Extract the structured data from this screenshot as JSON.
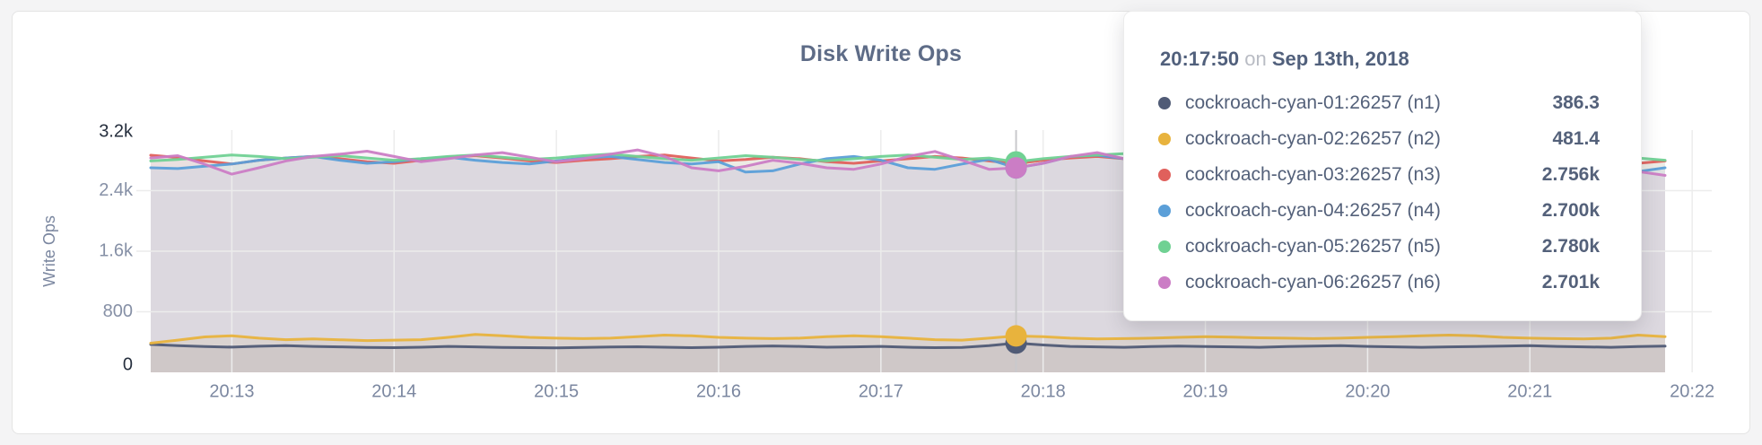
{
  "page": {
    "background": "#f4f4f5",
    "card_background": "#ffffff"
  },
  "chart_data": {
    "type": "area",
    "title": "Disk Write Ops",
    "ylabel": "Write Ops",
    "grid": true,
    "legend_position": "tooltip-only",
    "ylim": [
      0,
      3200
    ],
    "y_ticks": [
      {
        "label": "0",
        "value": 0,
        "emphasis": true
      },
      {
        "label": "800",
        "value": 800,
        "emphasis": false
      },
      {
        "label": "1.6k",
        "value": 1600,
        "emphasis": false
      },
      {
        "label": "2.4k",
        "value": 2400,
        "emphasis": false
      },
      {
        "label": "3.2k",
        "value": 3200,
        "emphasis": true
      }
    ],
    "x_ticks": [
      "20:13",
      "20:14",
      "20:15",
      "20:16",
      "20:17",
      "20:18",
      "20:19",
      "20:20",
      "20:21",
      "20:22"
    ],
    "x_window": {
      "start": "20:12:30",
      "end": "20:21:50",
      "step_seconds": 10,
      "first_tick_offset_s": 30,
      "tick_interval_s": 60
    },
    "hover": {
      "index": 32,
      "time": "20:17:50"
    },
    "series": [
      {
        "name": "cockroach-cyan-01:26257 (n1)",
        "color": "#505b76",
        "values": [
          368,
          352,
          340,
          333,
          345,
          352,
          342,
          336,
          330,
          326,
          332,
          342,
          336,
          330,
          326,
          322,
          328,
          334,
          338,
          332,
          326,
          332,
          342,
          348,
          342,
          332,
          336,
          342,
          332,
          326,
          330,
          352,
          386,
          362,
          342,
          336,
          331,
          341,
          346,
          341,
          336,
          331,
          341,
          347,
          352,
          342,
          336,
          331,
          336,
          341,
          346,
          352,
          342,
          336,
          331,
          341,
          346
        ]
      },
      {
        "name": "cockroach-cyan-02:26257 (n2)",
        "color": "#e8b33d",
        "values": [
          385,
          425,
          468,
          482,
          452,
          432,
          442,
          430,
          420,
          426,
          432,
          462,
          500,
          482,
          462,
          452,
          446,
          452,
          472,
          492,
          482,
          462,
          452,
          446,
          452,
          472,
          482,
          472,
          452,
          432,
          426,
          452,
          481,
          470,
          452,
          441,
          446,
          452,
          462,
          472,
          466,
          456,
          451,
          446,
          452,
          462,
          472,
          482,
          492,
          482,
          462,
          452,
          446,
          441,
          452,
          492,
          472
        ]
      },
      {
        "name": "cockroach-cyan-03:26257 (n3)",
        "color": "#e0605c",
        "values": [
          2868,
          2838,
          2792,
          2752,
          2802,
          2832,
          2852,
          2822,
          2782,
          2762,
          2802,
          2842,
          2862,
          2832,
          2792,
          2772,
          2802,
          2822,
          2852,
          2872,
          2832,
          2792,
          2812,
          2842,
          2822,
          2782,
          2762,
          2792,
          2822,
          2852,
          2832,
          2792,
          2756,
          2802,
          2832,
          2852,
          2822,
          2782,
          2802,
          2832,
          2862,
          2842,
          2802,
          2772,
          2792,
          2822,
          2852,
          2872,
          2832,
          2792,
          2772,
          2802,
          2896,
          2822,
          2782,
          2762,
          2792
        ]
      },
      {
        "name": "cockroach-cyan-04:26257 (n4)",
        "color": "#5b9fd8",
        "values": [
          2702,
          2692,
          2722,
          2752,
          2802,
          2832,
          2852,
          2802,
          2762,
          2782,
          2822,
          2842,
          2802,
          2772,
          2752,
          2792,
          2832,
          2852,
          2812,
          2772,
          2752,
          2782,
          2645,
          2662,
          2752,
          2822,
          2852,
          2802,
          2702,
          2682,
          2752,
          2812,
          2700,
          2762,
          2852,
          2868,
          2822,
          2762,
          2702,
          2732,
          2792,
          2842,
          2802,
          2752,
          2702,
          2742,
          2802,
          2832,
          2782,
          2702,
          2662,
          2702,
          2762,
          2802,
          2742,
          2652,
          2702
        ]
      },
      {
        "name": "cockroach-cyan-05:26257 (n5)",
        "color": "#70d193",
        "values": [
          2792,
          2812,
          2842,
          2872,
          2852,
          2822,
          2842,
          2862,
          2832,
          2802,
          2822,
          2852,
          2872,
          2842,
          2812,
          2832,
          2862,
          2882,
          2852,
          2822,
          2802,
          2832,
          2862,
          2842,
          2812,
          2792,
          2822,
          2852,
          2872,
          2842,
          2812,
          2832,
          2780,
          2822,
          2852,
          2872,
          2888,
          2852,
          2822,
          2842,
          2872,
          2852,
          2822,
          2802,
          2832,
          2862,
          2882,
          2852,
          2822,
          2842,
          2862,
          2832,
          2802,
          2822,
          2852,
          2832,
          2802
        ]
      },
      {
        "name": "cockroach-cyan-06:26257 (n6)",
        "color": "#cb7dc5",
        "values": [
          2832,
          2862,
          2748,
          2618,
          2702,
          2792,
          2852,
          2882,
          2922,
          2852,
          2782,
          2822,
          2872,
          2902,
          2842,
          2782,
          2822,
          2882,
          2938,
          2852,
          2702,
          2662,
          2722,
          2802,
          2762,
          2702,
          2682,
          2752,
          2852,
          2918,
          2802,
          2682,
          2701,
          2762,
          2852,
          2902,
          2822,
          2702,
          2662,
          2722,
          2802,
          2762,
          2702,
          2752,
          2822,
          2882,
          2948,
          2852,
          2752,
          2702,
          2762,
          2702,
          2652,
          2602,
          2702,
          2652,
          2602
        ]
      }
    ]
  },
  "tooltip": {
    "time": "20:17:50",
    "connector": "on",
    "date": "Sep 13th, 2018",
    "rows": [
      {
        "name": "cockroach-cyan-01:26257 (n1)",
        "value": "386.3",
        "color": "#505b76"
      },
      {
        "name": "cockroach-cyan-02:26257 (n2)",
        "value": "481.4",
        "color": "#e8b33d"
      },
      {
        "name": "cockroach-cyan-03:26257 (n3)",
        "value": "2.756k",
        "color": "#e0605c"
      },
      {
        "name": "cockroach-cyan-04:26257 (n4)",
        "value": "2.700k",
        "color": "#5b9fd8"
      },
      {
        "name": "cockroach-cyan-05:26257 (n5)",
        "value": "2.780k",
        "color": "#70d193"
      },
      {
        "name": "cockroach-cyan-06:26257 (n6)",
        "value": "2.701k",
        "color": "#cb7dc5"
      }
    ]
  },
  "style_colors": {
    "title": "#5e6c87",
    "axis_tick": "#8690a6",
    "axis_tick_emphasis": "#262f3e",
    "axis_label": "#7b87a0",
    "gridline": "#ececec",
    "hover_line": "#c9c9cc"
  }
}
